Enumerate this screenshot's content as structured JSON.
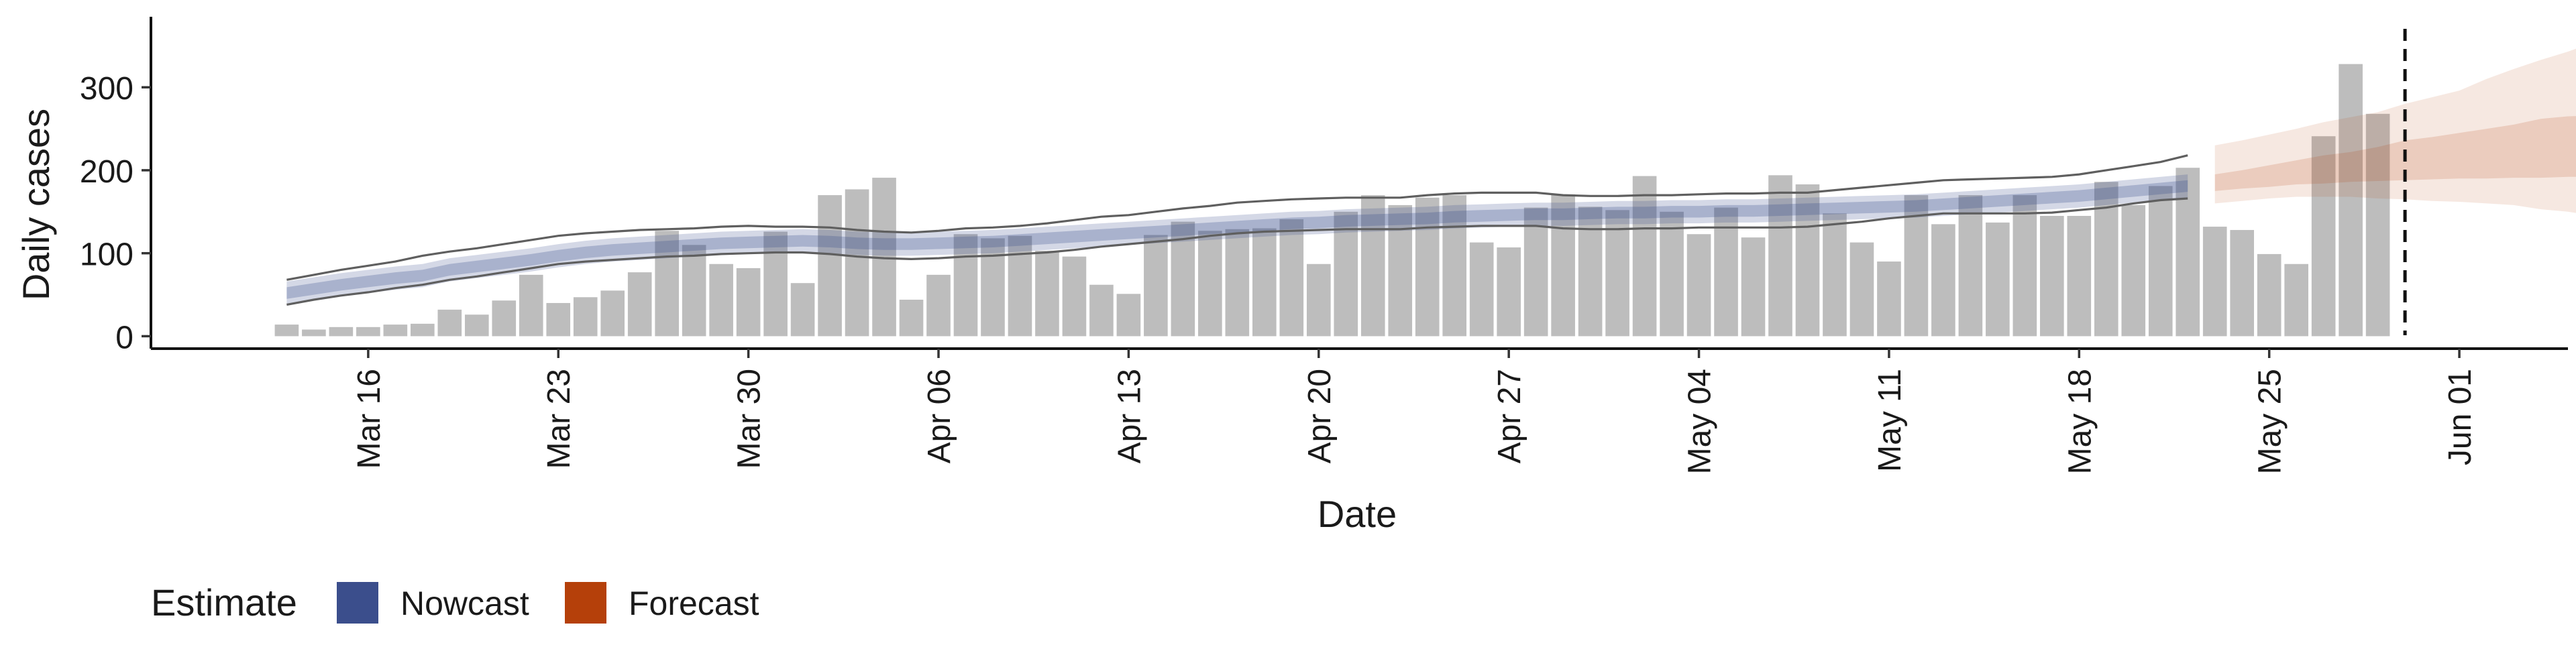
{
  "chart_data": {
    "type": "bar",
    "title": "",
    "xlabel": "Date",
    "ylabel": "Daily cases",
    "ylim": [
      -15,
      385
    ],
    "yticks": [
      0,
      100,
      200,
      300
    ],
    "x_start": "2020-03-13",
    "xticks": [
      "Mar 16",
      "Mar 23",
      "Mar 30",
      "Apr 06",
      "Apr 13",
      "Apr 20",
      "Apr 27",
      "May 04",
      "May 11",
      "May 18",
      "May 25",
      "Jun 01"
    ],
    "xtick_dates": [
      "2020-03-16",
      "2020-03-23",
      "2020-03-30",
      "2020-04-06",
      "2020-04-13",
      "2020-04-20",
      "2020-04-27",
      "2020-05-04",
      "2020-05-11",
      "2020-05-18",
      "2020-05-25",
      "2020-06-01"
    ],
    "xlim": [
      "2020-03-08",
      "2020-06-05"
    ],
    "vline_date": "2020-05-30",
    "grid": false,
    "bars": {
      "color": "#bdbdbd",
      "values": [
        14,
        8,
        11,
        11,
        14,
        15,
        32,
        26,
        43,
        74,
        40,
        47,
        55,
        77,
        127,
        110,
        87,
        82,
        126,
        64,
        170,
        177,
        191,
        44,
        74,
        123,
        118,
        121,
        103,
        96,
        62,
        51,
        122,
        138,
        127,
        129,
        130,
        141,
        87,
        150,
        170,
        158,
        167,
        170,
        113,
        107,
        155,
        171,
        156,
        152,
        193,
        150,
        123,
        155,
        119,
        194,
        183,
        148,
        113,
        90,
        170,
        135,
        170,
        137,
        170,
        145,
        145,
        186,
        158,
        181,
        203,
        132,
        128,
        99,
        87,
        241,
        328,
        268
      ]
    },
    "nowcast": {
      "color": "#3b4e8c",
      "median": [
        52,
        57,
        62,
        66,
        70,
        73,
        80,
        84,
        88,
        92,
        97,
        101,
        104,
        106,
        108,
        110,
        112,
        113,
        114,
        115,
        114,
        112,
        111,
        111,
        112,
        113,
        114,
        116,
        118,
        120,
        122,
        124,
        126,
        128,
        130,
        132,
        134,
        136,
        137,
        139,
        140,
        141,
        142,
        144,
        145,
        146,
        147,
        147,
        148,
        149,
        149,
        150,
        150,
        151,
        151,
        152,
        153,
        154,
        155,
        156,
        157,
        159,
        161,
        163,
        165,
        167,
        169,
        172,
        175,
        178,
        181
      ],
      "q25_75_low": [
        45,
        50,
        55,
        59,
        63,
        66,
        73,
        77,
        81,
        85,
        90,
        94,
        97,
        99,
        101,
        103,
        105,
        106,
        107,
        108,
        107,
        105,
        104,
        104,
        105,
        106,
        107,
        109,
        111,
        113,
        115,
        117,
        119,
        121,
        123,
        125,
        127,
        129,
        130,
        132,
        133,
        134,
        135,
        137,
        138,
        139,
        140,
        140,
        141,
        142,
        142,
        143,
        143,
        144,
        144,
        145,
        146,
        147,
        148,
        149,
        150,
        152,
        154,
        156,
        158,
        160,
        162,
        165,
        168,
        171,
        174
      ],
      "q25_75_high": [
        59,
        64,
        69,
        73,
        77,
        80,
        87,
        91,
        95,
        99,
        104,
        108,
        111,
        113,
        115,
        117,
        119,
        120,
        121,
        122,
        121,
        119,
        118,
        118,
        119,
        120,
        121,
        123,
        125,
        127,
        129,
        131,
        133,
        135,
        137,
        139,
        141,
        143,
        144,
        146,
        147,
        148,
        149,
        151,
        152,
        153,
        154,
        154,
        155,
        156,
        156,
        157,
        157,
        158,
        158,
        159,
        160,
        161,
        162,
        163,
        164,
        166,
        168,
        170,
        172,
        174,
        176,
        179,
        182,
        185,
        188
      ],
      "q5_95_low": [
        38,
        43,
        48,
        52,
        56,
        59,
        66,
        70,
        74,
        78,
        83,
        87,
        90,
        92,
        94,
        96,
        98,
        99,
        100,
        101,
        100,
        98,
        97,
        97,
        98,
        99,
        100,
        102,
        104,
        106,
        108,
        110,
        112,
        114,
        116,
        118,
        120,
        122,
        123,
        125,
        126,
        127,
        128,
        130,
        131,
        132,
        133,
        133,
        134,
        135,
        135,
        136,
        136,
        137,
        137,
        138,
        139,
        140,
        141,
        142,
        143,
        145,
        147,
        149,
        151,
        153,
        155,
        158,
        161,
        164,
        167
      ],
      "q5_95_high": [
        66,
        71,
        76,
        80,
        84,
        87,
        94,
        98,
        102,
        106,
        111,
        115,
        118,
        120,
        122,
        124,
        126,
        127,
        128,
        129,
        128,
        126,
        125,
        125,
        126,
        127,
        128,
        130,
        132,
        134,
        136,
        138,
        140,
        142,
        144,
        146,
        148,
        150,
        151,
        153,
        154,
        155,
        156,
        158,
        159,
        160,
        161,
        161,
        162,
        163,
        163,
        164,
        164,
        165,
        165,
        166,
        167,
        168,
        169,
        170,
        171,
        173,
        175,
        177,
        179,
        181,
        183,
        186,
        189,
        192,
        195
      ]
    },
    "outer_lines": {
      "color": "#5f5f5f",
      "upper": [
        68,
        74,
        80,
        85,
        90,
        97,
        102,
        106,
        111,
        116,
        121,
        124,
        126,
        128,
        129,
        130,
        132,
        133,
        132,
        132,
        131,
        128,
        126,
        125,
        127,
        130,
        131,
        133,
        136,
        140,
        144,
        146,
        150,
        154,
        157,
        161,
        163,
        165,
        166,
        167,
        167,
        167,
        170,
        172,
        173,
        173,
        173,
        170,
        169,
        169,
        170,
        170,
        171,
        172,
        172,
        173,
        173,
        176,
        179,
        182,
        185,
        188,
        189,
        190,
        191,
        192,
        195,
        200,
        205,
        210,
        218
      ],
      "lower": [
        38,
        44,
        49,
        53,
        58,
        62,
        68,
        72,
        77,
        82,
        87,
        90,
        92,
        94,
        96,
        97,
        99,
        100,
        101,
        101,
        99,
        96,
        94,
        93,
        94,
        96,
        97,
        99,
        101,
        104,
        108,
        111,
        114,
        117,
        121,
        124,
        126,
        127,
        128,
        129,
        129,
        129,
        131,
        132,
        133,
        133,
        133,
        130,
        129,
        129,
        130,
        130,
        131,
        131,
        131,
        131,
        132,
        135,
        138,
        142,
        145,
        148,
        148,
        148,
        148,
        149,
        152,
        155,
        160,
        164,
        166
      ]
    },
    "forecast": {
      "color": "#b5400a",
      "q25_75_low": [
        175,
        178,
        180,
        183,
        184,
        186,
        187,
        188,
        189,
        190,
        190,
        191,
        191,
        192,
        192,
        195
      ],
      "q25_75_high": [
        195,
        200,
        206,
        212,
        218,
        222,
        228,
        236,
        240,
        245,
        250,
        255,
        262,
        265,
        266,
        264
      ],
      "q5_95_low": [
        160,
        163,
        166,
        168,
        168,
        168,
        166,
        165,
        163,
        162,
        160,
        158,
        153,
        150,
        145,
        138
      ],
      "q5_95_high": [
        230,
        236,
        243,
        250,
        258,
        264,
        270,
        280,
        288,
        296,
        310,
        322,
        333,
        343,
        355,
        362
      ]
    },
    "legend": {
      "title": "Estimate",
      "position": "bottom-left",
      "items": [
        {
          "label": "Nowcast",
          "color": "#3b4e8c"
        },
        {
          "label": "Forecast",
          "color": "#b5400a"
        }
      ]
    }
  }
}
